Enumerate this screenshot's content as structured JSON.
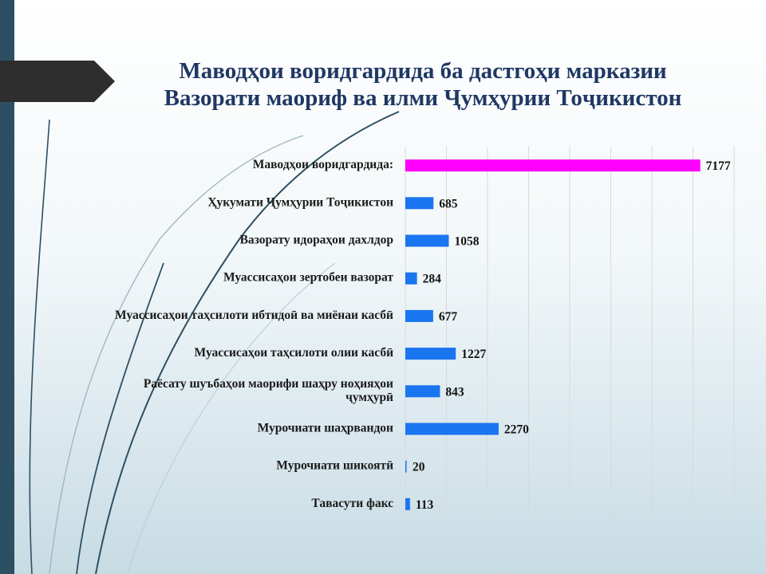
{
  "slide": {
    "title_line1": "Маводҳои воридгардида ба дастгоҳи марказии",
    "title_line2": "Вазорати маориф ва илми Ҷумҳурии Тоҷикистон"
  },
  "colors": {
    "title": "#1f3864",
    "bar_total": "#ff00ff",
    "bar": "#1a75f0",
    "sidebar": "#2d4f63"
  },
  "chart_data": {
    "type": "bar",
    "orientation": "horizontal",
    "title": "Маводҳои воридгардида ба дастгоҳи марказии Вазорати маориф ва илми Ҷумҳурии Тоҷикистон",
    "xlim": [
      0,
      8000
    ],
    "grid": true,
    "legend": "none",
    "categories": [
      "Маводҳои воридгардида:",
      "Ҳукумати Ҷумҳурии Тоҷикистон",
      "Вазорату идораҳои дахлдор",
      "Муассисаҳои зертобеи вазорат",
      "Муассисаҳои таҳсилоти ибтидоӣ ва миёнаи касбӣ",
      "Муассисаҳои таҳсилоти олии касбӣ",
      "Раёсату шуъбаҳои маорифи шаҳру ноҳияҳои ҷумҳурӣ",
      "Муроҷиати шаҳрвандон",
      "Мурочиати шикоятӣ",
      "Тавасути факс"
    ],
    "label_lines": [
      [
        "Маводҳои воридгардида:"
      ],
      [
        "Ҳукумати Ҷумҳурии Тоҷикистон"
      ],
      [
        "Вазорату идораҳои дахлдор"
      ],
      [
        "Муассисаҳои зертобеи вазорат"
      ],
      [
        "Муассисаҳои таҳсилоти ибтидоӣ ва миёнаи касбӣ"
      ],
      [
        "Муассисаҳои таҳсилоти олии касбӣ"
      ],
      [
        "Раёсату шуъбаҳои маорифи шаҳру ноҳияҳои",
        "ҷумҳурӣ"
      ],
      [
        "Мурочиати шаҳрвандон"
      ],
      [
        "Мурочиати шикоятӣ"
      ],
      [
        "Тавасути факс"
      ]
    ],
    "values": [
      7177,
      685,
      1058,
      284,
      677,
      1227,
      843,
      2270,
      20,
      113
    ],
    "highlight_index": 0
  }
}
